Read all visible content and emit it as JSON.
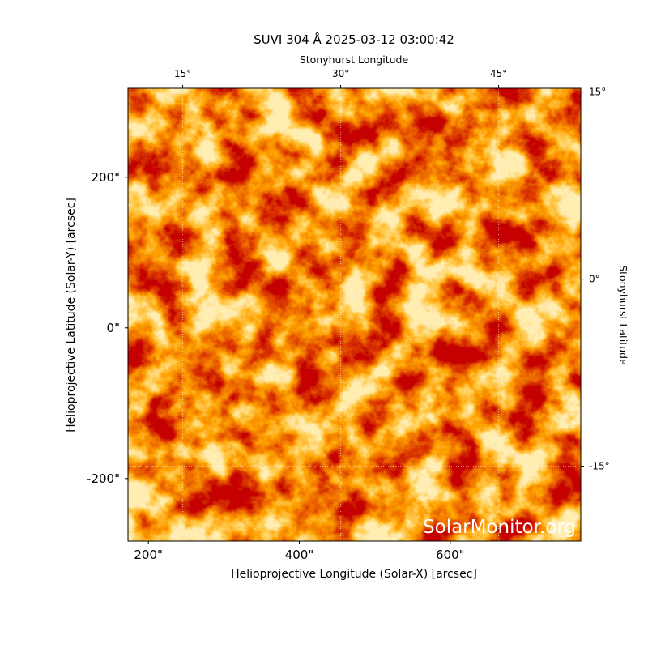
{
  "chart_data": {
    "type": "image",
    "title": "SUVI 304 Å 2025-03-12 03:00:42",
    "xlabel": "Helioprojective Longitude (Solar-X) [arcsec]",
    "ylabel": "Helioprojective Latitude (Solar-Y) [arcsec]",
    "x2label": "Stonyhurst Longitude",
    "y2label": "Stonyhurst Latitude",
    "annotation": "SolarMonitor.org",
    "xlim": [
      173,
      773
    ],
    "ylim": [
      -283,
      318
    ],
    "xticks": [
      {
        "value": 200,
        "label": "200\""
      },
      {
        "value": 400,
        "label": "400\""
      },
      {
        "value": 600,
        "label": "600\""
      }
    ],
    "yticks": [
      {
        "value": -200,
        "label": "-200\""
      },
      {
        "value": 0,
        "label": "0\""
      },
      {
        "value": 200,
        "label": "200\""
      }
    ],
    "x2lim": [
      9.8,
      52.8
    ],
    "x2ticks": [
      {
        "value": 15,
        "label": "15°"
      },
      {
        "value": 30,
        "label": "30°"
      },
      {
        "value": 45,
        "label": "45°"
      }
    ],
    "y2lim": [
      -21,
      15.3
    ],
    "y2ticks": [
      {
        "value": -15,
        "label": "-15°"
      },
      {
        "value": 0,
        "label": "0°"
      },
      {
        "value": 15,
        "label": "15°"
      }
    ],
    "grid": true
  }
}
